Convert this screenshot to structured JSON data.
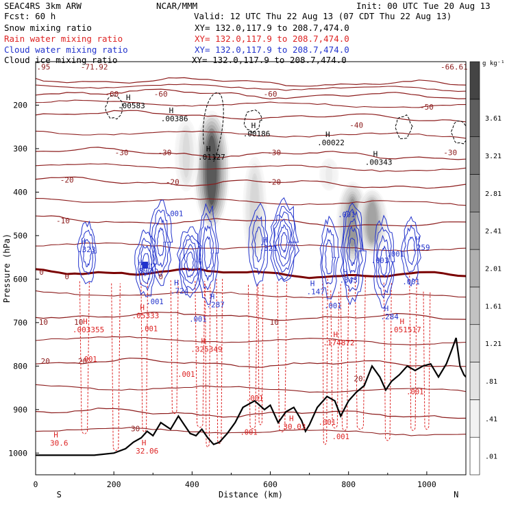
{
  "header": {
    "model": "SEAC4RS  3km ARW",
    "org": "NCAR/MMM",
    "init": "Init: 00 UTC Tue 20 Aug 13",
    "fcst": "Fcst:   60 h",
    "valid": "Valid: 12 UTC Thu 22 Aug 13 (07 CDT Thu 22 Aug 13)",
    "fields": [
      {
        "label": "Snow mixing ratio",
        "xy": "XY= 132.0,117.9 to 208.7,474.0",
        "color": "#000000"
      },
      {
        "label": "Rain water mixing ratio",
        "xy": "XY= 132.0,117.9 to 208.7,474.0",
        "color": "#dd2222"
      },
      {
        "label": "Cloud water mixing ratio",
        "xy": "XY= 132.0,117.9 to 208.7,474.0",
        "color": "#2233cc"
      },
      {
        "label": "Cloud ice mixing ratio",
        "xy": "XY= 132.0,117.9 to 208.7,474.0",
        "color": "#000000"
      }
    ]
  },
  "chart_data": {
    "type": "heatmap",
    "xlabel": "Distance (km)",
    "ylabel": "Pressure (hPa)",
    "xlim": [
      0,
      1100
    ],
    "ylim": [
      1050,
      100
    ],
    "x_ticks": [
      0,
      200,
      400,
      600,
      800,
      1000
    ],
    "y_ticks": [
      200,
      300,
      400,
      500,
      600,
      700,
      800,
      900,
      1000
    ],
    "x_end_labels": {
      "left": "S",
      "right": "N"
    },
    "colorbar": {
      "unit": "g kg⁻¹",
      "ticks": [
        ".01",
        ".41",
        ".81",
        "1.21",
        "1.61",
        "2.01",
        "2.41",
        "2.81",
        "3.21",
        "3.61"
      ],
      "shades": [
        "#ffffff",
        "#f2f2f2",
        "#e3e3e3",
        "#d3d3d3",
        "#c2c2c2",
        "#b0b0b0",
        "#9c9c9c",
        "#888888",
        "#737373",
        "#5e5e5e",
        "#444444"
      ]
    },
    "temperature_contours": [
      {
        "t": -60,
        "p": 140
      },
      {
        "t": -50,
        "p": 168
      },
      {
        "t": -40,
        "p": 218
      },
      {
        "t": -30,
        "p": 305
      },
      {
        "t": -20,
        "p": 372
      },
      {
        "t": -10,
        "p": 462
      },
      {
        "t": 0,
        "p": 580
      },
      {
        "t": 10,
        "p": 682
      },
      {
        "t": 20,
        "p": 790
      },
      {
        "t": 30,
        "p": 905
      }
    ],
    "temperature_labels": [
      {
        "text": ".95",
        "x": 20,
        "p": 118
      },
      {
        "text": "-71.92",
        "x": 150,
        "p": 118
      },
      {
        "text": "-66.61",
        "x": 1070,
        "p": 118
      },
      {
        "text": "-60",
        "x": 195,
        "p": 180
      },
      {
        "text": "-60",
        "x": 320,
        "p": 180
      },
      {
        "text": "-60",
        "x": 600,
        "p": 180
      },
      {
        "text": "-50",
        "x": 1000,
        "p": 210
      },
      {
        "text": "-40",
        "x": 820,
        "p": 252
      },
      {
        "text": "-30",
        "x": 220,
        "p": 315
      },
      {
        "text": "-30",
        "x": 330,
        "p": 315
      },
      {
        "text": "-30",
        "x": 610,
        "p": 315
      },
      {
        "text": "-30",
        "x": 1060,
        "p": 315
      },
      {
        "text": "-20",
        "x": 80,
        "p": 378
      },
      {
        "text": "-20",
        "x": 350,
        "p": 383
      },
      {
        "text": "-20",
        "x": 610,
        "p": 383
      },
      {
        "text": "-10",
        "x": 70,
        "p": 472
      },
      {
        "text": "0",
        "x": 15,
        "p": 590
      },
      {
        "text": "0",
        "x": 80,
        "p": 600
      },
      {
        "text": "0",
        "x": 320,
        "p": 600
      },
      {
        "text": "10",
        "x": 20,
        "p": 705
      },
      {
        "text": "10",
        "x": 110,
        "p": 705
      },
      {
        "text": "10",
        "x": 610,
        "p": 705
      },
      {
        "text": "20",
        "x": 25,
        "p": 795
      },
      {
        "text": "20",
        "x": 120,
        "p": 795
      },
      {
        "text": "20",
        "x": 825,
        "p": 835
      },
      {
        "text": "30",
        "x": 255,
        "p": 950
      }
    ],
    "extrema": [
      {
        "text": ".00583",
        "x": 245,
        "p": 207,
        "color": "#000000"
      },
      {
        "text": ".00386",
        "x": 355,
        "p": 237,
        "color": "#000000"
      },
      {
        "text": ".01127",
        "x": 450,
        "p": 325,
        "color": "#000000"
      },
      {
        "text": ".00186",
        "x": 565,
        "p": 272,
        "color": "#000000"
      },
      {
        "text": ".00022",
        "x": 755,
        "p": 292,
        "color": "#000000"
      },
      {
        "text": ".00343",
        "x": 877,
        "p": 337,
        "color": "#000000"
      },
      {
        "text": ".323",
        "x": 130,
        "p": 538,
        "color": "#2233cc"
      },
      {
        "text": ".892",
        "x": 275,
        "p": 587,
        "color": "#2233cc"
      },
      {
        "text": ".724",
        "x": 368,
        "p": 633,
        "color": "#2233cc"
      },
      {
        "text": ".287",
        "x": 460,
        "p": 665,
        "color": "#2233cc"
      },
      {
        "text": ".321",
        "x": 595,
        "p": 535,
        "color": "#2233cc"
      },
      {
        "text": ".147",
        "x": 716,
        "p": 635,
        "color": "#2233cc"
      },
      {
        "text": ".343",
        "x": 800,
        "p": 608,
        "color": "#2233cc"
      },
      {
        "text": ".284",
        "x": 905,
        "p": 692,
        "color": "#2233cc"
      },
      {
        "text": ".259",
        "x": 985,
        "p": 533,
        "color": "#2233cc"
      },
      {
        "text": ".003355",
        "x": 135,
        "p": 722,
        "color": "#dd2222"
      },
      {
        "text": ".05333",
        "x": 281,
        "p": 690,
        "color": "#dd2222"
      },
      {
        "text": ".325349",
        "x": 437,
        "p": 767,
        "color": "#dd2222"
      },
      {
        "text": ".174872",
        "x": 775,
        "p": 752,
        "color": "#dd2222"
      },
      {
        "text": ".051517",
        "x": 945,
        "p": 722,
        "color": "#dd2222"
      },
      {
        "text": "30.6",
        "x": 60,
        "p": 983,
        "color": "#dd2222"
      },
      {
        "text": "32.06",
        "x": 285,
        "p": 1001,
        "color": "#dd2222"
      },
      {
        "text": "30.03",
        "x": 662,
        "p": 945,
        "color": "#dd2222"
      }
    ],
    "contour_labels": [
      {
        "text": ".001",
        "x": 355,
        "p": 455,
        "color": "#2233cc"
      },
      {
        "text": ".001",
        "x": 795,
        "p": 458,
        "color": "#2233cc"
      },
      {
        "text": ".001",
        "x": 920,
        "p": 548,
        "color": "#2233cc"
      },
      {
        "text": ".001",
        "x": 305,
        "p": 658,
        "color": "#2233cc"
      },
      {
        "text": ".001",
        "x": 415,
        "p": 698,
        "color": "#2233cc"
      },
      {
        "text": ".001",
        "x": 760,
        "p": 667,
        "color": "#2233cc"
      },
      {
        "text": ".001",
        "x": 960,
        "p": 612,
        "color": "#2233cc"
      },
      {
        "text": ".001",
        "x": 290,
        "p": 720,
        "color": "#dd2222"
      },
      {
        "text": ".001",
        "x": 135,
        "p": 790,
        "color": "#dd2222"
      },
      {
        "text": ".001",
        "x": 385,
        "p": 825,
        "color": "#dd2222"
      },
      {
        "text": ".001",
        "x": 560,
        "p": 880,
        "color": "#dd2222"
      },
      {
        "text": ".001",
        "x": 545,
        "p": 958,
        "color": "#dd2222"
      },
      {
        "text": ".001",
        "x": 745,
        "p": 935,
        "color": "#dd2222"
      },
      {
        "text": ".001",
        "x": 780,
        "p": 968,
        "color": "#dd2222"
      },
      {
        "text": ".001",
        "x": 970,
        "p": 865,
        "color": "#dd2222"
      },
      {
        "text": ".001",
        "x": 880,
        "p": 563,
        "color": "#2233cc"
      }
    ],
    "terrain": [
      [
        0,
        1005
      ],
      [
        100,
        1005
      ],
      [
        150,
        1005
      ],
      [
        200,
        1000
      ],
      [
        230,
        990
      ],
      [
        250,
        975
      ],
      [
        270,
        965
      ],
      [
        285,
        950
      ],
      [
        300,
        960
      ],
      [
        320,
        930
      ],
      [
        345,
        945
      ],
      [
        365,
        915
      ],
      [
        380,
        935
      ],
      [
        395,
        955
      ],
      [
        410,
        960
      ],
      [
        425,
        945
      ],
      [
        440,
        965
      ],
      [
        455,
        980
      ],
      [
        470,
        975
      ],
      [
        490,
        955
      ],
      [
        510,
        930
      ],
      [
        530,
        895
      ],
      [
        560,
        880
      ],
      [
        585,
        900
      ],
      [
        600,
        890
      ],
      [
        620,
        930
      ],
      [
        640,
        905
      ],
      [
        660,
        895
      ],
      [
        680,
        925
      ],
      [
        690,
        950
      ],
      [
        700,
        935
      ],
      [
        720,
        895
      ],
      [
        745,
        870
      ],
      [
        765,
        880
      ],
      [
        780,
        915
      ],
      [
        800,
        880
      ],
      [
        820,
        860
      ],
      [
        840,
        845
      ],
      [
        860,
        800
      ],
      [
        880,
        825
      ],
      [
        895,
        855
      ],
      [
        910,
        835
      ],
      [
        930,
        820
      ],
      [
        950,
        800
      ],
      [
        970,
        810
      ],
      [
        990,
        800
      ],
      [
        1010,
        795
      ],
      [
        1030,
        825
      ],
      [
        1050,
        795
      ],
      [
        1065,
        760
      ],
      [
        1075,
        735
      ],
      [
        1085,
        800
      ],
      [
        1095,
        820
      ],
      [
        1100,
        825
      ]
    ],
    "snow_columns": [
      {
        "x": 450,
        "p_top": 190,
        "p_bot": 480,
        "peak": 3.9
      },
      {
        "x": 385,
        "p_top": 210,
        "p_bot": 400,
        "peak": 1.0
      },
      {
        "x": 560,
        "p_top": 290,
        "p_bot": 560,
        "peak": 1.2
      },
      {
        "x": 750,
        "p_top": 310,
        "p_bot": 400,
        "peak": 0.6
      },
      {
        "x": 810,
        "p_top": 360,
        "p_bot": 560,
        "peak": 2.7
      },
      {
        "x": 860,
        "p_top": 380,
        "p_bot": 540,
        "peak": 2.5
      }
    ],
    "rain_shafts": [
      125,
      205,
      278,
      355,
      420,
      440,
      470,
      555,
      575,
      630,
      740,
      765,
      790,
      830,
      900,
      965,
      1000
    ],
    "cloud_water_cells": [
      {
        "x": 132,
        "p_top": 470,
        "p_bot": 610,
        "rings": 3
      },
      {
        "x": 282,
        "p_top": 490,
        "p_bot": 640,
        "rings": 4
      },
      {
        "x": 320,
        "p_top": 420,
        "p_bot": 610,
        "rings": 4
      },
      {
        "x": 395,
        "p_top": 480,
        "p_bot": 640,
        "rings": 5
      },
      {
        "x": 440,
        "p_top": 430,
        "p_bot": 650,
        "rings": 4
      },
      {
        "x": 570,
        "p_top": 430,
        "p_bot": 610,
        "rings": 3
      },
      {
        "x": 635,
        "p_top": 420,
        "p_bot": 610,
        "rings": 6
      },
      {
        "x": 750,
        "p_top": 460,
        "p_bot": 640,
        "rings": 3
      },
      {
        "x": 810,
        "p_top": 420,
        "p_bot": 650,
        "rings": 5
      },
      {
        "x": 890,
        "p_top": 460,
        "p_bot": 660,
        "rings": 4
      },
      {
        "x": 960,
        "p_top": 460,
        "p_bot": 610,
        "rings": 3
      }
    ],
    "cloud_ice_patches": [
      {
        "x": 200,
        "p": 205
      },
      {
        "x": 555,
        "p": 235
      },
      {
        "x": 940,
        "p": 250
      },
      {
        "x": 1085,
        "p": 262
      }
    ]
  }
}
